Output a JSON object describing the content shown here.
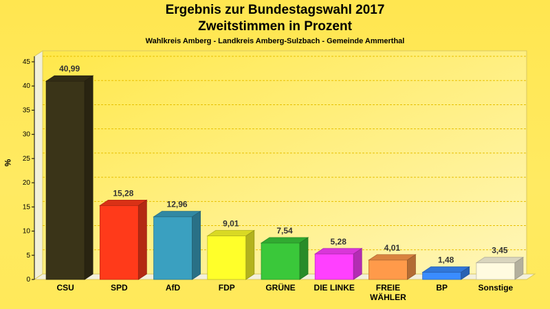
{
  "title_line1": "Ergebnis zur Bundestagswahl 2017",
  "title_line2": "Zweitstimmen in Prozent",
  "subtitle": "Wahlkreis Amberg - Landkreis Amberg-Sulzbach - Gemeinde Ammerthal",
  "chart_data": {
    "type": "bar",
    "title": "Ergebnis zur Bundestagswahl 2017 Zweitstimmen in Prozent",
    "subtitle": "Wahlkreis Amberg - Landkreis Amberg-Sulzbach - Gemeinde Ammerthal",
    "xlabel": "",
    "ylabel": "%",
    "ylim": [
      0,
      45
    ],
    "yticks": [
      0,
      5,
      10,
      15,
      20,
      25,
      30,
      35,
      40,
      45
    ],
    "grid": true,
    "categories": [
      "CSU",
      "SPD",
      "AfD",
      "FDP",
      "GRÜNE",
      "DIE LINKE",
      "FREIE WÄHLER",
      "BP",
      "Sonstige"
    ],
    "category_lines": [
      [
        "CSU"
      ],
      [
        "SPD"
      ],
      [
        "AfD"
      ],
      [
        "FDP"
      ],
      [
        "GRÜNE"
      ],
      [
        "DIE LINKE"
      ],
      [
        "FREIE",
        "WÄHLER"
      ],
      [
        "BP"
      ],
      [
        "Sonstige"
      ]
    ],
    "values": [
      40.99,
      15.28,
      12.96,
      9.01,
      7.54,
      5.28,
      4.01,
      1.48,
      3.45
    ],
    "value_labels": [
      "40,99",
      "15,28",
      "12,96",
      "9,01",
      "7,54",
      "5,28",
      "4,01",
      "1,48",
      "3,45"
    ],
    "colors": [
      "#3a3418",
      "#ff3a1a",
      "#3aa0c0",
      "#ffff2a",
      "#3ac83a",
      "#ff40ff",
      "#ff9a4a",
      "#3a8cff",
      "#fffbe0"
    ]
  }
}
